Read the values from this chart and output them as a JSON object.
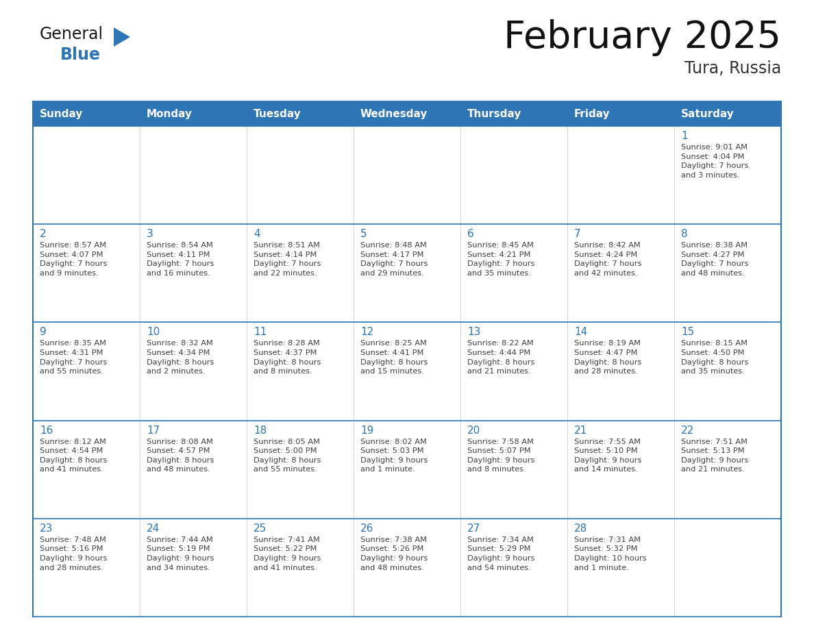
{
  "title": "February 2025",
  "subtitle": "Tura, Russia",
  "header_color": "#2E75B6",
  "header_text_color": "#FFFFFF",
  "border_color": "#2E75B6",
  "text_color": "#404040",
  "day_number_color": "#2E75B6",
  "days_of_week": [
    "Sunday",
    "Monday",
    "Tuesday",
    "Wednesday",
    "Thursday",
    "Friday",
    "Saturday"
  ],
  "weeks": [
    [
      {
        "day": "",
        "info": ""
      },
      {
        "day": "",
        "info": ""
      },
      {
        "day": "",
        "info": ""
      },
      {
        "day": "",
        "info": ""
      },
      {
        "day": "",
        "info": ""
      },
      {
        "day": "",
        "info": ""
      },
      {
        "day": "1",
        "info": "Sunrise: 9:01 AM\nSunset: 4:04 PM\nDaylight: 7 hours\nand 3 minutes."
      }
    ],
    [
      {
        "day": "2",
        "info": "Sunrise: 8:57 AM\nSunset: 4:07 PM\nDaylight: 7 hours\nand 9 minutes."
      },
      {
        "day": "3",
        "info": "Sunrise: 8:54 AM\nSunset: 4:11 PM\nDaylight: 7 hours\nand 16 minutes."
      },
      {
        "day": "4",
        "info": "Sunrise: 8:51 AM\nSunset: 4:14 PM\nDaylight: 7 hours\nand 22 minutes."
      },
      {
        "day": "5",
        "info": "Sunrise: 8:48 AM\nSunset: 4:17 PM\nDaylight: 7 hours\nand 29 minutes."
      },
      {
        "day": "6",
        "info": "Sunrise: 8:45 AM\nSunset: 4:21 PM\nDaylight: 7 hours\nand 35 minutes."
      },
      {
        "day": "7",
        "info": "Sunrise: 8:42 AM\nSunset: 4:24 PM\nDaylight: 7 hours\nand 42 minutes."
      },
      {
        "day": "8",
        "info": "Sunrise: 8:38 AM\nSunset: 4:27 PM\nDaylight: 7 hours\nand 48 minutes."
      }
    ],
    [
      {
        "day": "9",
        "info": "Sunrise: 8:35 AM\nSunset: 4:31 PM\nDaylight: 7 hours\nand 55 minutes."
      },
      {
        "day": "10",
        "info": "Sunrise: 8:32 AM\nSunset: 4:34 PM\nDaylight: 8 hours\nand 2 minutes."
      },
      {
        "day": "11",
        "info": "Sunrise: 8:28 AM\nSunset: 4:37 PM\nDaylight: 8 hours\nand 8 minutes."
      },
      {
        "day": "12",
        "info": "Sunrise: 8:25 AM\nSunset: 4:41 PM\nDaylight: 8 hours\nand 15 minutes."
      },
      {
        "day": "13",
        "info": "Sunrise: 8:22 AM\nSunset: 4:44 PM\nDaylight: 8 hours\nand 21 minutes."
      },
      {
        "day": "14",
        "info": "Sunrise: 8:19 AM\nSunset: 4:47 PM\nDaylight: 8 hours\nand 28 minutes."
      },
      {
        "day": "15",
        "info": "Sunrise: 8:15 AM\nSunset: 4:50 PM\nDaylight: 8 hours\nand 35 minutes."
      }
    ],
    [
      {
        "day": "16",
        "info": "Sunrise: 8:12 AM\nSunset: 4:54 PM\nDaylight: 8 hours\nand 41 minutes."
      },
      {
        "day": "17",
        "info": "Sunrise: 8:08 AM\nSunset: 4:57 PM\nDaylight: 8 hours\nand 48 minutes."
      },
      {
        "day": "18",
        "info": "Sunrise: 8:05 AM\nSunset: 5:00 PM\nDaylight: 8 hours\nand 55 minutes."
      },
      {
        "day": "19",
        "info": "Sunrise: 8:02 AM\nSunset: 5:03 PM\nDaylight: 9 hours\nand 1 minute."
      },
      {
        "day": "20",
        "info": "Sunrise: 7:58 AM\nSunset: 5:07 PM\nDaylight: 9 hours\nand 8 minutes."
      },
      {
        "day": "21",
        "info": "Sunrise: 7:55 AM\nSunset: 5:10 PM\nDaylight: 9 hours\nand 14 minutes."
      },
      {
        "day": "22",
        "info": "Sunrise: 7:51 AM\nSunset: 5:13 PM\nDaylight: 9 hours\nand 21 minutes."
      }
    ],
    [
      {
        "day": "23",
        "info": "Sunrise: 7:48 AM\nSunset: 5:16 PM\nDaylight: 9 hours\nand 28 minutes."
      },
      {
        "day": "24",
        "info": "Sunrise: 7:44 AM\nSunset: 5:19 PM\nDaylight: 9 hours\nand 34 minutes."
      },
      {
        "day": "25",
        "info": "Sunrise: 7:41 AM\nSunset: 5:22 PM\nDaylight: 9 hours\nand 41 minutes."
      },
      {
        "day": "26",
        "info": "Sunrise: 7:38 AM\nSunset: 5:26 PM\nDaylight: 9 hours\nand 48 minutes."
      },
      {
        "day": "27",
        "info": "Sunrise: 7:34 AM\nSunset: 5:29 PM\nDaylight: 9 hours\nand 54 minutes."
      },
      {
        "day": "28",
        "info": "Sunrise: 7:31 AM\nSunset: 5:32 PM\nDaylight: 10 hours\nand 1 minute."
      },
      {
        "day": "",
        "info": ""
      }
    ]
  ],
  "logo_general_color": "#1a1a1a",
  "logo_blue_color": "#2E75B6",
  "logo_triangle_color": "#2E75B6",
  "fig_width": 11.88,
  "fig_height": 9.18,
  "dpi": 100
}
